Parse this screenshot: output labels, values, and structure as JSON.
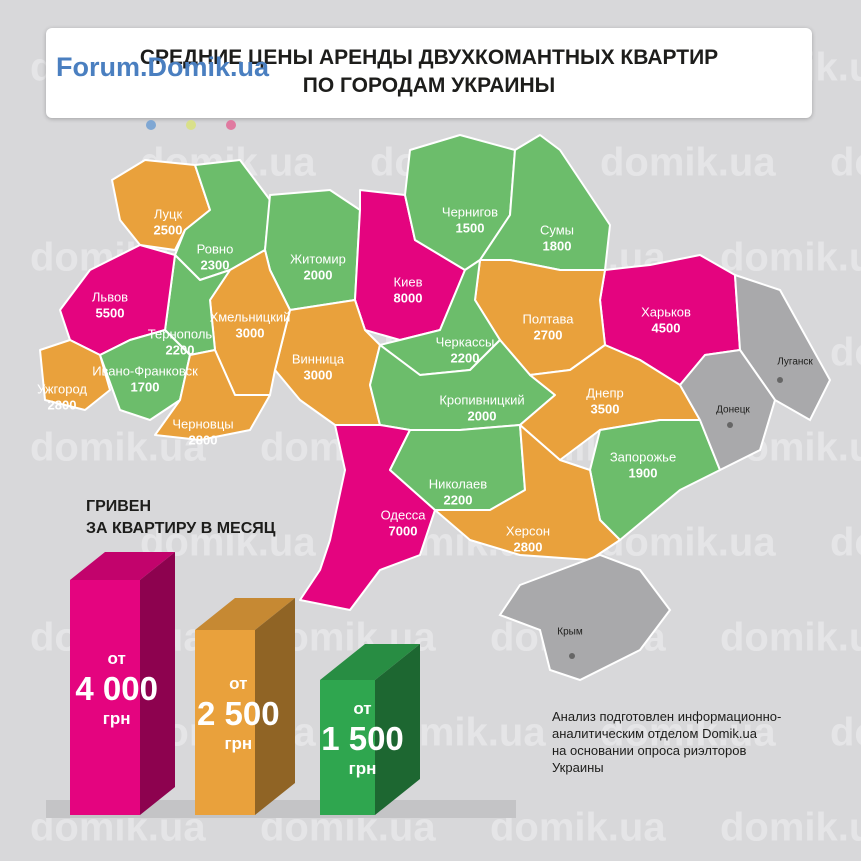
{
  "header": {
    "title": "СРЕДНИЕ ЦЕНЫ АРЕНДЫ ДВУХКОМАНТНЫХ КВАРТИР\nПО ГОРОДАМ УКРАИНЫ",
    "logo": "Forum.Domik.ua"
  },
  "watermark": "domik.ua",
  "cities": [
    {
      "name": "Луцк",
      "price": 2500,
      "color": "#e9a13c"
    },
    {
      "name": "Ровно",
      "price": 2300,
      "color": "#6cbd6b"
    },
    {
      "name": "Житомир",
      "price": 2000,
      "color": "#6cbd6b"
    },
    {
      "name": "Киев",
      "price": 8000,
      "color": "#e4047f"
    },
    {
      "name": "Чернигов",
      "price": 1500,
      "color": "#6cbd6b"
    },
    {
      "name": "Сумы",
      "price": 1800,
      "color": "#6cbd6b"
    },
    {
      "name": "Харьков",
      "price": 4500,
      "color": "#e4047f"
    },
    {
      "name": "Полтава",
      "price": 2700,
      "color": "#e9a13c"
    },
    {
      "name": "Черкассы",
      "price": 2200,
      "color": "#6cbd6b"
    },
    {
      "name": "Винница",
      "price": 3000,
      "color": "#e9a13c"
    },
    {
      "name": "Хмельницкий",
      "price": 3000,
      "color": "#e9a13c"
    },
    {
      "name": "Тернополь",
      "price": 2200,
      "color": "#6cbd6b"
    },
    {
      "name": "Львов",
      "price": 5500,
      "color": "#e4047f"
    },
    {
      "name": "Ужгород",
      "price": 2800,
      "color": "#e9a13c"
    },
    {
      "name": "Ивано-Франковск",
      "price": 1700,
      "color": "#6cbd6b"
    },
    {
      "name": "Черновцы",
      "price": 2800,
      "color": "#e9a13c"
    },
    {
      "name": "Кропивницкий",
      "price": 2000,
      "color": "#6cbd6b"
    },
    {
      "name": "Одесса",
      "price": 7000,
      "color": "#e4047f"
    },
    {
      "name": "Николаев",
      "price": 2200,
      "color": "#6cbd6b"
    },
    {
      "name": "Днепр",
      "price": 3500,
      "color": "#e9a13c"
    },
    {
      "name": "Запорожье",
      "price": 1900,
      "color": "#6cbd6b"
    },
    {
      "name": "Херсон",
      "price": 2800,
      "color": "#e9a13c"
    }
  ],
  "no_data": {
    "color": "#a9a9ab",
    "cities": [
      "Луганск",
      "Донецк",
      "Крым"
    ]
  },
  "unit_label": "ГРИВЕН\nЗА КВАРТИРУ В МЕСЯЦ",
  "legend": [
    {
      "prefix": "от",
      "amount": "4 000",
      "currency": "грн",
      "color": "#e4047f"
    },
    {
      "prefix": "от",
      "amount": "2 500",
      "currency": "грн",
      "color": "#e9a13c"
    },
    {
      "prefix": "от",
      "amount": "1 500",
      "currency": "грн",
      "color": "#2fa64f"
    }
  ],
  "note": "Анализ подготовлен информационно-\nаналитическим отделом Domik.ua\nна основании опроса риэлторов\nУкраины"
}
